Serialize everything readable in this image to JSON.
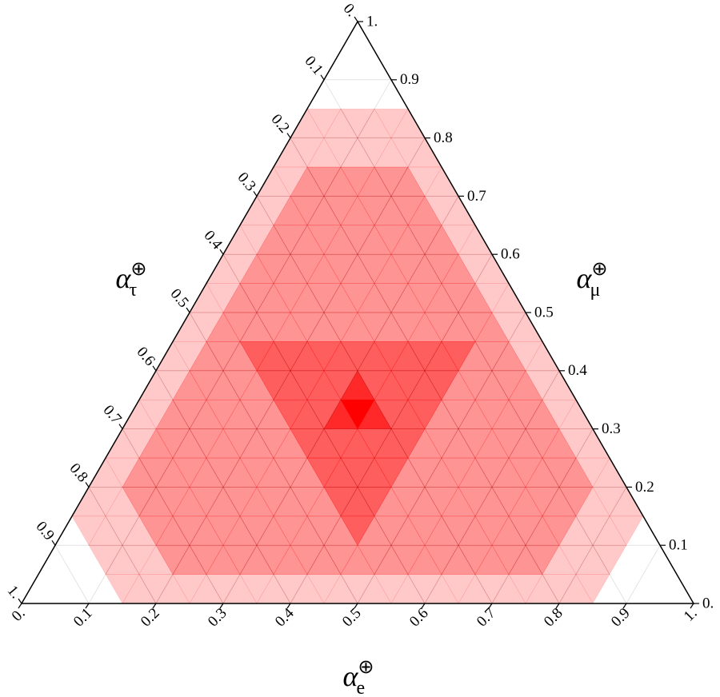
{
  "chart_data": {
    "type": "ternary",
    "color": "#ff0000",
    "grid": true,
    "ticks": [
      {
        "value": 0,
        "label": "0."
      },
      0.1,
      0.2,
      0.3,
      0.4,
      0.5,
      0.6,
      0.7,
      0.8,
      0.9,
      {
        "value": 1,
        "label": "1."
      }
    ],
    "axes": {
      "bottom": {
        "symbol": "α",
        "subscript": "e",
        "superscript": "⊕"
      },
      "right": {
        "symbol": "α",
        "subscript": "μ",
        "superscript": "⊕"
      },
      "left": {
        "symbol": "α",
        "subscript": "τ",
        "superscript": "⊕"
      }
    },
    "density": [
      [
        0,
        0,
        0,
        0,
        0,
        0.5,
        0.5,
        0.5,
        0.5,
        0.5,
        0.5,
        0.5,
        0.5,
        0.5,
        0.5,
        0.5,
        0.5,
        0.5,
        0.5,
        0.5,
        0.5,
        0.5,
        0.5,
        0.5,
        0.5,
        0.5,
        0.5,
        0.5,
        0.5,
        0.5,
        0.5,
        0.5,
        0.5,
        0.5,
        0,
        0,
        0,
        0,
        0
      ],
      [
        0,
        0,
        0,
        0.5,
        0.5,
        0.5,
        0.5,
        1,
        1,
        1,
        1,
        1,
        1,
        1,
        1,
        1,
        1,
        1,
        1,
        1,
        1,
        1,
        1,
        1,
        1,
        1,
        1,
        1,
        1,
        1,
        0.5,
        0.5,
        0.5,
        0.5,
        0,
        0,
        0
      ],
      [
        0,
        0.5,
        0.5,
        0.5,
        0.5,
        1,
        1,
        1,
        1,
        1,
        1,
        1,
        1,
        1,
        1,
        1,
        1,
        1.5,
        1,
        1,
        1,
        1,
        1,
        1,
        1,
        1,
        1,
        1,
        1,
        1,
        0.5,
        0.5,
        0.5,
        0.5,
        0
      ],
      [
        0.5,
        0.5,
        0.5,
        1,
        1,
        1,
        1,
        1,
        1,
        1,
        1,
        1,
        1,
        1,
        1,
        1.5,
        1.5,
        1.5,
        1,
        1,
        1,
        1,
        1,
        1,
        1,
        1,
        1,
        1,
        1,
        1,
        0.5,
        0.5,
        0.5
      ],
      [
        0.5,
        0.5,
        1,
        1,
        1,
        1,
        1,
        1,
        1,
        1,
        1,
        1,
        1,
        1.5,
        1.5,
        1.5,
        1.5,
        1.5,
        1,
        1,
        1,
        1,
        1,
        1,
        1,
        1,
        1,
        1,
        1,
        0.5,
        0.5
      ],
      [
        0.5,
        0.5,
        1,
        1,
        1,
        1,
        1,
        1,
        1,
        1,
        1,
        1.5,
        1.5,
        1.5,
        1.5,
        1.5,
        1.5,
        1.5,
        1,
        1,
        1,
        1,
        1,
        1,
        1,
        1,
        1,
        0.5,
        0.5
      ],
      [
        0.5,
        0.5,
        1,
        1,
        1,
        1,
        1,
        1,
        1,
        1.5,
        1.5,
        1.5,
        2,
        3,
        2,
        1.5,
        1.5,
        1.5,
        1,
        1,
        1,
        1,
        1,
        1,
        1,
        0.5,
        0.5
      ],
      [
        0.5,
        0.5,
        1,
        1,
        1,
        1,
        1,
        1.5,
        1.5,
        1.5,
        1.5,
        1.5,
        2,
        1.5,
        1.5,
        1.5,
        1.5,
        1.5,
        1,
        1,
        1,
        1,
        1,
        0.5,
        0.5
      ],
      [
        0.5,
        0.5,
        1,
        1,
        1,
        1.5,
        1.5,
        1.5,
        1.5,
        1.5,
        1.5,
        1.5,
        1.5,
        1.5,
        1.5,
        1.5,
        1.5,
        1.5,
        1,
        1,
        1,
        0.5,
        0.5
      ],
      [
        0.5,
        0.5,
        1,
        1,
        1,
        1,
        1,
        1,
        1,
        1,
        1,
        1,
        1,
        1,
        1,
        1,
        1,
        1,
        1,
        0.5,
        0.5
      ],
      [
        0.5,
        0.5,
        1,
        1,
        1,
        1,
        1,
        1,
        1,
        1,
        1,
        1,
        1,
        1,
        1,
        1,
        1,
        0.5,
        0.5
      ],
      [
        0.5,
        0.5,
        1,
        1,
        1,
        1,
        1,
        1,
        1,
        1,
        1,
        1,
        1,
        1,
        1,
        0.5,
        0.5
      ],
      [
        0.5,
        0.5,
        1,
        1,
        1,
        1,
        1,
        1,
        1,
        1,
        1,
        1,
        1,
        0.5,
        0.5
      ],
      [
        0.5,
        0.5,
        1,
        1,
        1,
        1,
        1,
        1,
        1,
        1,
        1,
        0.5,
        0.5
      ],
      [
        0.5,
        0.5,
        1,
        1,
        1,
        1,
        1,
        1,
        1,
        0.5,
        0.5
      ],
      [
        0.5,
        0.5,
        0.5,
        0.5,
        0.5,
        0.5,
        0.5,
        0.5,
        0.5
      ],
      [
        0.5,
        0.5,
        0.5,
        0.5,
        0.5,
        0.5,
        0.5
      ],
      [
        0,
        0,
        0,
        0,
        0
      ],
      [
        0,
        0,
        0
      ],
      [
        0
      ]
    ]
  }
}
